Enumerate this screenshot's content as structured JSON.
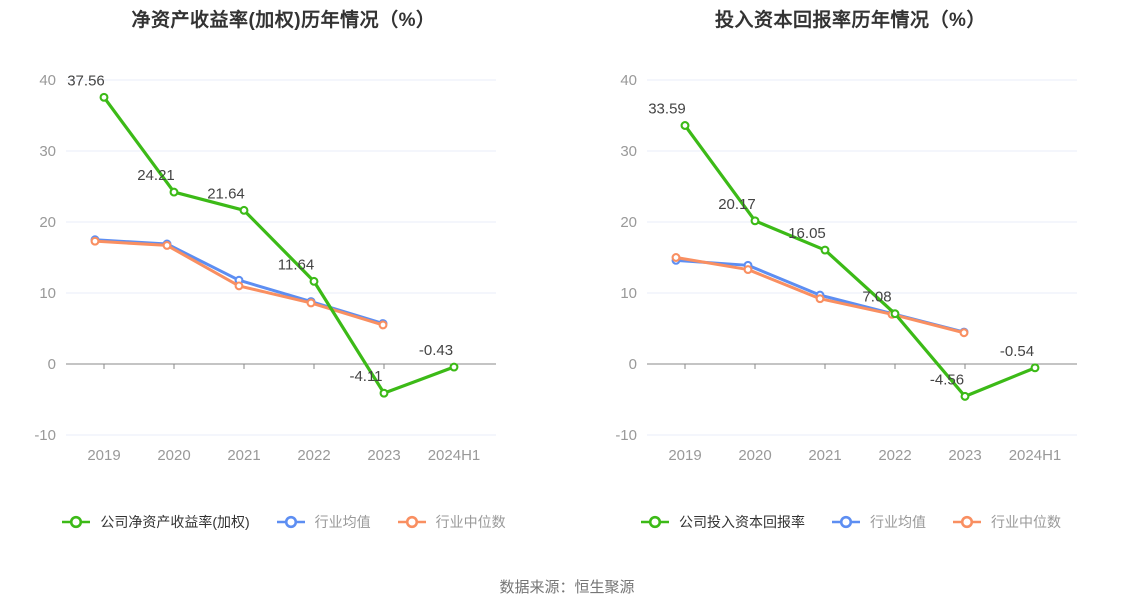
{
  "page": {
    "source_note": "数据来源：恒生聚源"
  },
  "colors": {
    "company_green": "#3cba17",
    "industry_avg_blue": "#5d8ef2",
    "industry_median_orange": "#f98f61",
    "gridline": "#e9eef9",
    "axis_line": "#888888",
    "axis_label": "#999999",
    "data_label": "#444444",
    "title_text": "#333333",
    "legend_muted": "#999999"
  },
  "chart_data": [
    {
      "type": "line",
      "title": "净资产收益率(加权)历年情况（%）",
      "categories": [
        "2019",
        "2020",
        "2021",
        "2022",
        "2023",
        "2024H1"
      ],
      "series": [
        {
          "name": "公司净资产收益率(加权)",
          "color": "#3cba17",
          "show_labels": true,
          "marker": "empty-circle",
          "values": [
            37.56,
            24.21,
            21.64,
            11.64,
            -4.11,
            -0.43
          ]
        },
        {
          "name": "行业均值",
          "color": "#5d8ef2",
          "show_labels": false,
          "marker": "empty-circle",
          "values": [
            17.5,
            16.9,
            11.8,
            8.8,
            5.7,
            null
          ]
        },
        {
          "name": "行业中位数",
          "color": "#f98f61",
          "show_labels": false,
          "marker": "empty-circle",
          "values": [
            17.3,
            16.7,
            11.0,
            8.6,
            5.5,
            null
          ]
        }
      ],
      "ylim": [
        -10,
        40
      ],
      "yticks": [
        40,
        30,
        20,
        10,
        0,
        -10
      ],
      "grid": true,
      "legend_position": "bottom"
    },
    {
      "type": "line",
      "title": "投入资本回报率历年情况（%）",
      "categories": [
        "2019",
        "2020",
        "2021",
        "2022",
        "2023",
        "2024H1"
      ],
      "series": [
        {
          "name": "公司投入资本回报率",
          "color": "#3cba17",
          "show_labels": true,
          "marker": "empty-circle",
          "values": [
            33.59,
            20.17,
            16.05,
            7.08,
            -4.56,
            -0.54
          ]
        },
        {
          "name": "行业均值",
          "color": "#5d8ef2",
          "show_labels": false,
          "marker": "empty-circle",
          "values": [
            14.6,
            13.9,
            9.7,
            7.1,
            4.5,
            null
          ]
        },
        {
          "name": "行业中位数",
          "color": "#f98f61",
          "show_labels": false,
          "marker": "empty-circle",
          "values": [
            15.0,
            13.3,
            9.2,
            7.0,
            4.4,
            null
          ]
        }
      ],
      "ylim": [
        -10,
        40
      ],
      "yticks": [
        40,
        30,
        20,
        10,
        0,
        -10
      ],
      "grid": true,
      "legend_position": "bottom"
    }
  ]
}
